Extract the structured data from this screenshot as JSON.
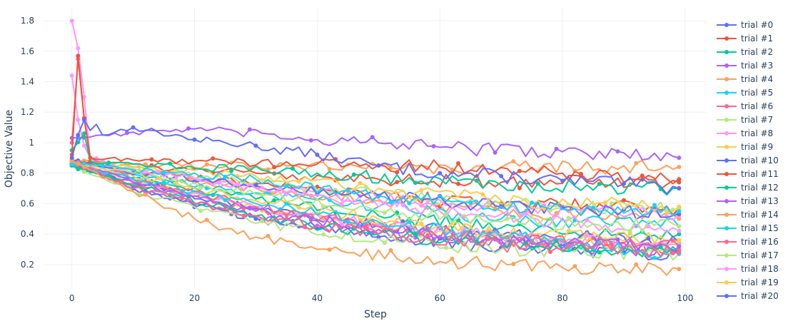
{
  "chart_data": {
    "type": "line",
    "title": "",
    "xlabel": "Step",
    "ylabel": "Objective Value",
    "xlim": [
      -4.5,
      103.5
    ],
    "ylim": [
      0.04,
      1.88
    ],
    "x_ticks": [
      0,
      20,
      40,
      60,
      80,
      100
    ],
    "y_ticks": [
      0.2,
      0.4,
      0.6,
      0.8,
      1,
      1.2,
      1.4,
      1.6,
      1.8
    ],
    "x_tick_labels": [
      "0",
      "20",
      "40",
      "60",
      "80",
      "100"
    ],
    "y_tick_labels": [
      "0.2",
      "0.4",
      "0.6",
      "0.8",
      "1",
      "1.2",
      "1.4",
      "1.6",
      "1.8"
    ],
    "grid": true,
    "legend_position": "right",
    "palette": [
      "#636efa",
      "#EF553B",
      "#00cc96",
      "#ab63fa",
      "#FFA15A",
      "#19d3f3",
      "#FF6692",
      "#B6E880",
      "#FF97FF",
      "#FECB52"
    ],
    "series": [
      {
        "name": "trial #0",
        "color": "#636efa",
        "key_steps": [
          0,
          1,
          2,
          3,
          4,
          5,
          10,
          20,
          30,
          40,
          50,
          60,
          70,
          80,
          90,
          99
        ],
        "key_values": [
          0.9,
          1.05,
          1.15,
          1.08,
          1.12,
          1.05,
          1.1,
          1.02,
          0.98,
          0.92,
          0.85,
          0.8,
          0.78,
          0.75,
          0.73,
          0.7
        ]
      },
      {
        "name": "trial #1",
        "color": "#EF553B",
        "key_steps": [
          0,
          1,
          2,
          3,
          5,
          20,
          40,
          60,
          80,
          99
        ],
        "key_values": [
          0.92,
          1.57,
          1.16,
          0.9,
          0.89,
          0.88,
          0.86,
          0.84,
          0.8,
          0.76
        ]
      },
      {
        "name": "trial #2",
        "color": "#00cc96",
        "key_steps": [
          0,
          2,
          3,
          10,
          40,
          70,
          99
        ],
        "key_values": [
          0.95,
          1.06,
          0.88,
          0.86,
          0.8,
          0.72,
          0.7
        ]
      },
      {
        "name": "trial #3",
        "color": "#ab63fa",
        "key_steps": [
          0,
          5,
          20,
          40,
          60,
          80,
          99
        ],
        "key_values": [
          1.03,
          1.05,
          1.09,
          1.02,
          0.97,
          0.94,
          0.9
        ]
      },
      {
        "name": "trial #4",
        "color": "#FFA15A",
        "key_steps": [
          0,
          10,
          20,
          30,
          40,
          60,
          80,
          99
        ],
        "key_values": [
          0.88,
          0.68,
          0.5,
          0.38,
          0.3,
          0.22,
          0.18,
          0.17
        ]
      },
      {
        "name": "trial #5",
        "color": "#19d3f3",
        "key_steps": [
          0,
          10,
          30,
          50,
          70,
          99
        ],
        "key_values": [
          0.86,
          0.82,
          0.76,
          0.65,
          0.58,
          0.55
        ]
      },
      {
        "name": "trial #6",
        "color": "#FF6692",
        "key_steps": [
          0,
          10,
          30,
          50,
          70,
          99
        ],
        "key_values": [
          0.88,
          0.7,
          0.52,
          0.4,
          0.33,
          0.28
        ]
      },
      {
        "name": "trial #7",
        "color": "#B6E880",
        "key_steps": [
          0,
          10,
          30,
          50,
          70,
          99
        ],
        "key_values": [
          0.87,
          0.8,
          0.66,
          0.55,
          0.48,
          0.45
        ]
      },
      {
        "name": "trial #8",
        "color": "#FF97FF",
        "key_steps": [
          0,
          1,
          2,
          3,
          10,
          30,
          60,
          99
        ],
        "key_values": [
          1.44,
          1.15,
          0.98,
          0.9,
          0.82,
          0.7,
          0.55,
          0.42
        ]
      },
      {
        "name": "trial #9",
        "color": "#FECB52",
        "key_steps": [
          0,
          10,
          30,
          50,
          70,
          99
        ],
        "key_values": [
          0.86,
          0.84,
          0.78,
          0.7,
          0.62,
          0.58
        ]
      },
      {
        "name": "trial #10",
        "color": "#636efa",
        "key_steps": [
          0,
          10,
          30,
          50,
          70,
          99
        ],
        "key_values": [
          0.88,
          0.8,
          0.72,
          0.65,
          0.58,
          0.53
        ]
      },
      {
        "name": "trial #11",
        "color": "#EF553B",
        "key_steps": [
          0,
          10,
          30,
          50,
          70,
          99
        ],
        "key_values": [
          0.87,
          0.84,
          0.8,
          0.76,
          0.74,
          0.74
        ]
      },
      {
        "name": "trial #12",
        "color": "#00cc96",
        "key_steps": [
          0,
          10,
          30,
          50,
          70,
          99
        ],
        "key_values": [
          0.85,
          0.72,
          0.52,
          0.4,
          0.33,
          0.28
        ]
      },
      {
        "name": "trial #13",
        "color": "#ab63fa",
        "key_steps": [
          0,
          10,
          30,
          50,
          70,
          99
        ],
        "key_values": [
          0.87,
          0.74,
          0.55,
          0.43,
          0.36,
          0.32
        ]
      },
      {
        "name": "trial #14",
        "color": "#FFA15A",
        "key_steps": [
          0,
          10,
          30,
          50,
          70,
          99
        ],
        "key_values": [
          0.89,
          0.86,
          0.85,
          0.84,
          0.84,
          0.84
        ]
      },
      {
        "name": "trial #15",
        "color": "#19d3f3",
        "key_steps": [
          0,
          10,
          30,
          50,
          70,
          99
        ],
        "key_values": [
          0.86,
          0.76,
          0.6,
          0.48,
          0.38,
          0.27
        ]
      },
      {
        "name": "trial #16",
        "color": "#FF6692",
        "key_steps": [
          0,
          1,
          2,
          3,
          10,
          30,
          50,
          70,
          99
        ],
        "key_values": [
          1.0,
          1.55,
          1.16,
          0.9,
          0.76,
          0.58,
          0.45,
          0.36,
          0.32
        ]
      },
      {
        "name": "trial #17",
        "color": "#B6E880",
        "key_steps": [
          0,
          10,
          30,
          50,
          70,
          99
        ],
        "key_values": [
          0.85,
          0.68,
          0.47,
          0.37,
          0.3,
          0.27
        ]
      },
      {
        "name": "trial #18",
        "color": "#FF97FF",
        "key_steps": [
          0,
          1,
          2,
          3,
          10,
          30,
          50,
          70,
          99
        ],
        "key_values": [
          1.8,
          1.62,
          1.3,
          0.9,
          0.75,
          0.58,
          0.46,
          0.38,
          0.33
        ]
      },
      {
        "name": "trial #19",
        "color": "#FECB52",
        "key_steps": [
          0,
          10,
          30,
          50,
          70,
          99
        ],
        "key_values": [
          0.86,
          0.78,
          0.62,
          0.5,
          0.4,
          0.35
        ]
      },
      {
        "name": "trial #20",
        "color": "#636efa",
        "key_steps": [
          0,
          10,
          30,
          50,
          70,
          99
        ],
        "key_values": [
          0.85,
          0.7,
          0.5,
          0.38,
          0.31,
          0.27
        ]
      }
    ],
    "extra_trials_not_in_legend": [
      {
        "color": "#EF553B",
        "key_steps": [
          0,
          10,
          30,
          50,
          70,
          99
        ],
        "key_values": [
          0.87,
          0.82,
          0.73,
          0.65,
          0.6,
          0.57
        ]
      },
      {
        "color": "#00cc96",
        "key_steps": [
          0,
          10,
          30,
          50,
          70,
          99
        ],
        "key_values": [
          0.86,
          0.77,
          0.63,
          0.52,
          0.44,
          0.4
        ]
      },
      {
        "color": "#ab63fa",
        "key_steps": [
          0,
          10,
          30,
          50,
          70,
          99
        ],
        "key_values": [
          0.88,
          0.71,
          0.51,
          0.4,
          0.34,
          0.29
        ]
      },
      {
        "color": "#FFA15A",
        "key_steps": [
          0,
          10,
          30,
          50,
          70,
          99
        ],
        "key_values": [
          0.86,
          0.8,
          0.7,
          0.62,
          0.55,
          0.5
        ]
      },
      {
        "color": "#19d3f3",
        "key_steps": [
          0,
          10,
          30,
          50,
          70,
          99
        ],
        "key_values": [
          0.87,
          0.79,
          0.67,
          0.58,
          0.5,
          0.45
        ]
      },
      {
        "color": "#FF6692",
        "key_steps": [
          0,
          10,
          30,
          50,
          70,
          99
        ],
        "key_values": [
          0.86,
          0.73,
          0.56,
          0.45,
          0.37,
          0.3
        ]
      },
      {
        "color": "#B6E880",
        "key_steps": [
          0,
          10,
          30,
          50,
          70,
          99
        ],
        "key_values": [
          0.88,
          0.83,
          0.74,
          0.66,
          0.6,
          0.56
        ]
      },
      {
        "color": "#FECB52",
        "key_steps": [
          0,
          10,
          30,
          50,
          70,
          99
        ],
        "key_values": [
          0.85,
          0.75,
          0.58,
          0.47,
          0.4,
          0.36
        ]
      },
      {
        "color": "#636efa",
        "key_steps": [
          0,
          10,
          30,
          50,
          70,
          99
        ],
        "key_values": [
          0.86,
          0.74,
          0.57,
          0.46,
          0.39,
          0.34
        ]
      },
      {
        "color": "#FF97FF",
        "key_steps": [
          0,
          10,
          30,
          50,
          70,
          99
        ],
        "key_values": [
          0.87,
          0.81,
          0.71,
          0.63,
          0.57,
          0.52
        ]
      }
    ]
  }
}
